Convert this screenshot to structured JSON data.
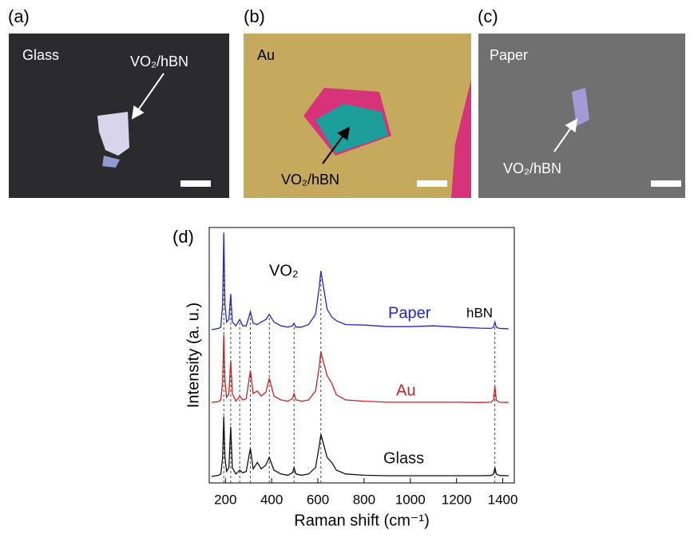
{
  "panels": [
    {
      "label": "(a)",
      "substrate": "Glass",
      "annotation": "VO₂/hBN"
    },
    {
      "label": "(b)",
      "substrate": "Au",
      "annotation": "VO₂/hBN"
    },
    {
      "label": "(c)",
      "substrate": "Paper",
      "annotation": "VO₂/hBN"
    }
  ],
  "chart_data": {
    "type": "line",
    "panel_label": "(d)",
    "x_label": "Raman shift (cm⁻¹)",
    "y_label": "Intensity (a. u.)",
    "annotations": [
      "VO₂",
      "hBN"
    ],
    "x": [
      140,
      170,
      180,
      188,
      193,
      198,
      205,
      215,
      223,
      230,
      245,
      262,
      275,
      290,
      308,
      320,
      338,
      355,
      375,
      390,
      410,
      440,
      470,
      490,
      497,
      505,
      530,
      560,
      590,
      605,
      613,
      622,
      640,
      660,
      680,
      720,
      800,
      900,
      1000,
      1100,
      1200,
      1300,
      1350,
      1360,
      1366,
      1372,
      1385,
      1425
    ],
    "series": [
      {
        "name": "Paper",
        "color": "#2424c8",
        "values": [
          60,
          60.5,
          61,
          70,
          98,
          70,
          63,
          64,
          74,
          63,
          61.5,
          64,
          61.5,
          61.5,
          67,
          62.5,
          62,
          63,
          64,
          66,
          63,
          61.5,
          61,
          61.5,
          62.5,
          61,
          61,
          62,
          66,
          76,
          83,
          78,
          68,
          65,
          63.5,
          62,
          61.8,
          61.2,
          61.2,
          61.5,
          61,
          60.6,
          60.5,
          61,
          63,
          61,
          60.5,
          60.3
        ]
      },
      {
        "name": "Au",
        "color": "#cc2222",
        "values": [
          31.5,
          31.8,
          32.5,
          40,
          58,
          40,
          33.5,
          35,
          48,
          35,
          32,
          34,
          32.5,
          33,
          44,
          35,
          36,
          34,
          35.5,
          41,
          34,
          32.5,
          32,
          33,
          35,
          32.5,
          32,
          32.5,
          36,
          45,
          51.5,
          48,
          42,
          39,
          34.5,
          32.5,
          32,
          31.6,
          31.6,
          31.6,
          31.6,
          31.5,
          31.6,
          32.5,
          38,
          32.5,
          31.6,
          31.5
        ]
      },
      {
        "name": "Glass",
        "color": "#111111",
        "values": [
          2.5,
          3,
          3.5,
          10,
          26,
          10,
          4.5,
          6,
          22,
          6,
          3.5,
          5,
          4,
          4.5,
          13.5,
          5.5,
          8,
          5.5,
          7,
          10,
          5,
          3.5,
          3,
          4,
          6,
          3.5,
          3,
          3.5,
          6,
          14,
          19,
          16,
          10,
          8,
          5,
          3.5,
          3,
          2.8,
          2.8,
          2.8,
          2.8,
          2.8,
          2.9,
          3.5,
          6,
          3.5,
          2.9,
          2.8
        ]
      }
    ],
    "reference_lines": [
      193,
      223,
      262,
      308,
      390,
      497,
      613,
      1366
    ],
    "xlim": [
      130,
      1450
    ],
    "ylim": [
      0,
      100
    ],
    "xticks": [
      200,
      400,
      600,
      800,
      1000,
      1200,
      1400
    ]
  }
}
